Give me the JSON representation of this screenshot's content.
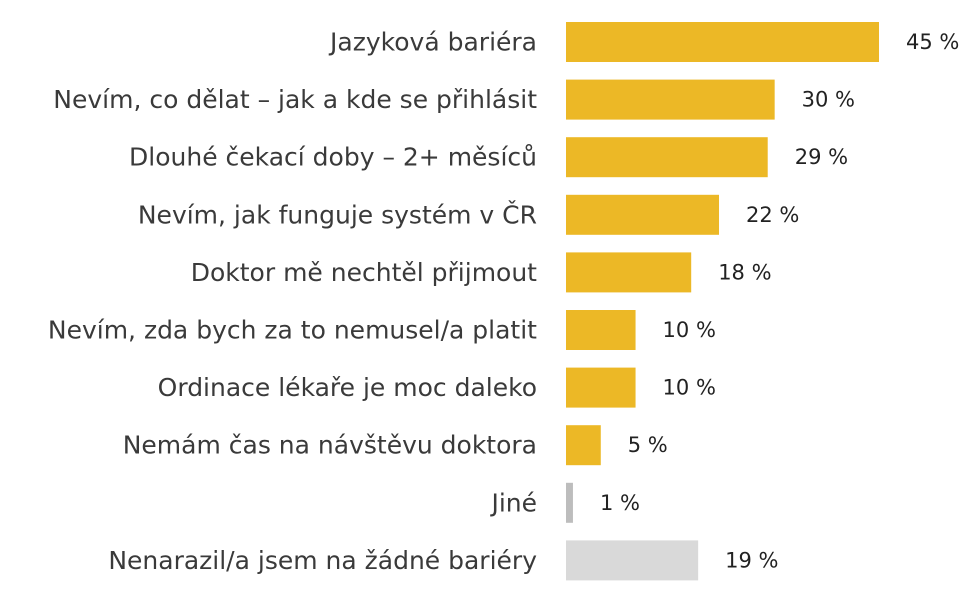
{
  "colors": {
    "barrier": "#ECB826",
    "no_barrier": "#D9D9D9",
    "tiny_bar": "#BDBDBD"
  },
  "chart_data": {
    "type": "bar",
    "orientation": "horizontal",
    "title": "",
    "xlabel": "",
    "ylabel": "",
    "xlim": [
      0,
      45
    ],
    "grid": false,
    "legend": "none",
    "categories": [
      "Jazyková bariéra",
      "Nevím, co dělat – jak a kde se přihlásit",
      "Dlouhé čekací doby – 2+ měsíců",
      "Nevím, jak funguje systém v ČR",
      "Doktor mě nechtěl přijmout",
      "Nevím, zda bych za to nemusel/a platit",
      "Ordinace lékaře je moc daleko",
      "Nemám čas na návštěvu doktora",
      "Jiné",
      "Nenarazil/a jsem na žádné bariéry"
    ],
    "values": [
      45,
      30,
      29,
      22,
      18,
      10,
      10,
      5,
      1,
      19
    ],
    "value_labels": [
      "45 %",
      "30 %",
      "29 %",
      "22 %",
      "18 %",
      "10 %",
      "10 %",
      "5 %",
      "1 %",
      "19 %"
    ],
    "bar_color_keys": [
      "barrier",
      "barrier",
      "barrier",
      "barrier",
      "barrier",
      "barrier",
      "barrier",
      "barrier",
      "tiny_bar",
      "no_barrier"
    ]
  }
}
